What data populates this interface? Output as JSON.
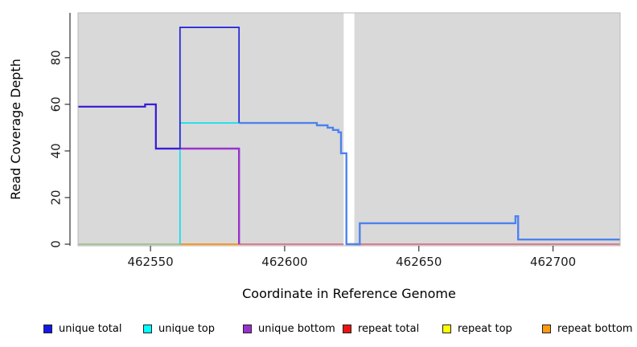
{
  "figure": {
    "title": "",
    "xlabel": "Coordinate in Reference Genome",
    "ylabel": "Read Coverage Depth"
  },
  "chart_data": {
    "type": "line",
    "step": true,
    "title": "",
    "xlabel": "Coordinate in Reference Genome",
    "ylabel": "Read Coverage Depth",
    "xlim": [
      462523,
      462725
    ],
    "ylim": [
      0,
      99
    ],
    "x_ticks": [
      462550,
      462600,
      462650,
      462700
    ],
    "y_ticks": [
      0,
      20,
      40,
      60,
      80
    ],
    "grid": false,
    "plot_bg": "#d9d9d9",
    "plot_border_color": "#b9b9b9",
    "axis_color": "#333333",
    "masked_region": {
      "start": 462622,
      "end": 462626,
      "color": "#ffffff"
    },
    "legend_position": "bottom",
    "series": [
      {
        "name": "unique total",
        "color": "#0000ee",
        "points": [
          [
            462523,
            59
          ],
          [
            462548,
            59
          ],
          [
            462548,
            60
          ],
          [
            462552,
            60
          ],
          [
            462552,
            41
          ],
          [
            462561,
            41
          ],
          [
            462561,
            93
          ],
          [
            462583,
            93
          ],
          [
            462583,
            52
          ],
          [
            462612,
            52
          ],
          [
            462612,
            51
          ],
          [
            462616,
            51
          ],
          [
            462616,
            50
          ],
          [
            462618,
            50
          ],
          [
            462618,
            49
          ],
          [
            462620,
            49
          ],
          [
            462620,
            48
          ],
          [
            462621,
            48
          ],
          [
            462621,
            39
          ],
          [
            462623,
            39
          ],
          [
            462623,
            0
          ],
          [
            462628,
            0
          ],
          [
            462628,
            9
          ],
          [
            462686,
            9
          ],
          [
            462686,
            12
          ],
          [
            462687,
            12
          ],
          [
            462687,
            2
          ],
          [
            462725,
            2
          ]
        ]
      },
      {
        "name": "unique top",
        "color": "#00ffff",
        "points": [
          [
            462523,
            0
          ],
          [
            462561,
            0
          ],
          [
            462561,
            52
          ],
          [
            462583,
            52
          ],
          [
            462612,
            52
          ],
          [
            462612,
            51
          ],
          [
            462616,
            51
          ],
          [
            462616,
            50
          ],
          [
            462618,
            50
          ],
          [
            462618,
            49
          ],
          [
            462620,
            49
          ],
          [
            462620,
            48
          ],
          [
            462621,
            48
          ],
          [
            462621,
            39
          ],
          [
            462623,
            39
          ],
          [
            462623,
            0
          ],
          [
            462628,
            0
          ],
          [
            462628,
            9
          ],
          [
            462686,
            9
          ],
          [
            462686,
            12
          ],
          [
            462687,
            12
          ],
          [
            462687,
            2
          ],
          [
            462725,
            2
          ]
        ]
      },
      {
        "name": "unique bottom",
        "color": "#9932cc",
        "points": [
          [
            462523,
            59
          ],
          [
            462548,
            59
          ],
          [
            462548,
            60
          ],
          [
            462552,
            60
          ],
          [
            462552,
            41
          ],
          [
            462583,
            41
          ],
          [
            462583,
            0
          ],
          [
            462725,
            0
          ]
        ]
      },
      {
        "name": "repeat total",
        "color": "#ee0000",
        "points": [
          [
            462523,
            0
          ],
          [
            462725,
            0
          ]
        ]
      },
      {
        "name": "repeat top",
        "color": "#ffff00",
        "points": [
          [
            462523,
            0
          ],
          [
            462725,
            0
          ]
        ]
      },
      {
        "name": "repeat bottom",
        "color": "#ff9912",
        "points": [
          [
            462523,
            0
          ],
          [
            462725,
            0
          ]
        ]
      }
    ],
    "render": {
      "strokes_under_mask": [
        {
          "name": "repeat-total-line",
          "color": "#d95f73",
          "width": 1.5,
          "points": [
            [
              462523,
              0
            ],
            [
              462725,
              0
            ]
          ]
        }
      ],
      "strokes": [
        {
          "name": "unique-top-repeat-top-overlap-line",
          "color": "#8fd48f",
          "width": 1.5,
          "points": [
            [
              462523,
              0
            ],
            [
              462561,
              0
            ]
          ]
        },
        {
          "name": "repeat-bottom-line",
          "color": "#ff9912",
          "width": 1.8,
          "points": [
            [
              462561,
              0
            ],
            [
              462583,
              0
            ]
          ]
        },
        {
          "name": "unique-bottom-line",
          "color": "#9932cc",
          "width": 2.4,
          "points": [
            [
              462523,
              59
            ],
            [
              462548,
              59
            ],
            [
              462548,
              60
            ],
            [
              462552,
              60
            ],
            [
              462552,
              41
            ],
            [
              462583,
              41
            ],
            [
              462583,
              0
            ]
          ]
        },
        {
          "name": "unique-top-line",
          "color": "#00e1ee",
          "width": 1.6,
          "points": [
            [
              462561,
              0
            ],
            [
              462561,
              52
            ],
            [
              462583,
              52
            ]
          ]
        },
        {
          "name": "unique-total-line",
          "color": "#2121dd",
          "width": 1.7,
          "points": [
            [
              462523,
              59
            ],
            [
              462548,
              59
            ],
            [
              462548,
              60
            ],
            [
              462552,
              60
            ],
            [
              462552,
              41
            ],
            [
              462561,
              41
            ],
            [
              462561,
              93
            ],
            [
              462583,
              93
            ],
            [
              462583,
              52
            ]
          ]
        },
        {
          "name": "unique-total-top-overlap-line",
          "color": "#4d82ee",
          "width": 2.4,
          "points": [
            [
              462583,
              52
            ],
            [
              462612,
              52
            ],
            [
              462612,
              51
            ],
            [
              462616,
              51
            ],
            [
              462616,
              50
            ],
            [
              462618,
              50
            ],
            [
              462618,
              49
            ],
            [
              462620,
              49
            ],
            [
              462620,
              48
            ],
            [
              462621,
              48
            ],
            [
              462621,
              39
            ],
            [
              462623,
              39
            ],
            [
              462623,
              0
            ],
            [
              462628,
              0
            ],
            [
              462628,
              9
            ],
            [
              462686,
              9
            ],
            [
              462686,
              12
            ],
            [
              462687,
              12
            ],
            [
              462687,
              2
            ],
            [
              462725,
              2
            ]
          ]
        }
      ]
    }
  },
  "legend": {
    "items": [
      {
        "label": "unique total",
        "color": "#1616e8"
      },
      {
        "label": "unique top",
        "color": "#00ffff"
      },
      {
        "label": "unique bottom",
        "color": "#9932cc"
      },
      {
        "label": "repeat total",
        "color": "#ee1111"
      },
      {
        "label": "repeat top",
        "color": "#ffff00"
      },
      {
        "label": "repeat bottom",
        "color": "#ff9912"
      }
    ]
  }
}
